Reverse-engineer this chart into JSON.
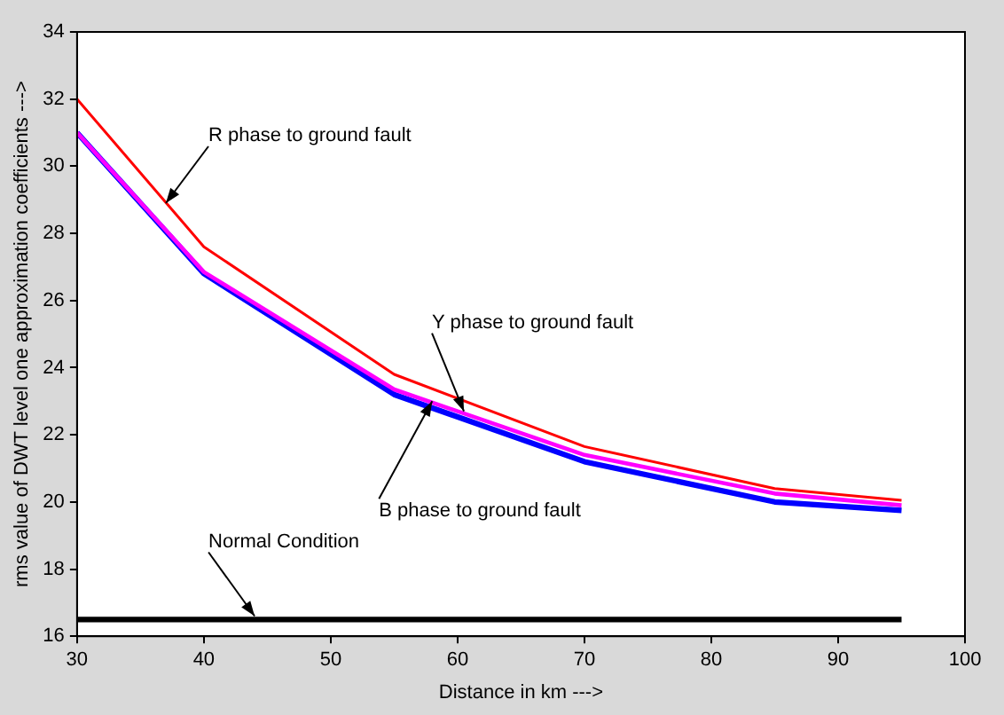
{
  "chart_data": {
    "type": "line",
    "xlabel": "Distance in km --->",
    "ylabel": "rms value of DWT level one approximation coefficients --->",
    "xlim": [
      30,
      100
    ],
    "xticks": [
      30,
      40,
      50,
      60,
      70,
      80,
      90,
      100
    ],
    "ylim": [
      16,
      34
    ],
    "yticks": [
      16,
      18,
      20,
      22,
      24,
      26,
      28,
      30,
      32,
      34
    ],
    "grid": false,
    "legend": false,
    "marker": "none",
    "line_style": "solid",
    "series": [
      {
        "color": "#ff0000",
        "x": [
          30,
          40,
          55,
          70,
          85,
          95
        ],
        "values": [
          32,
          27.6,
          23.8,
          21.65,
          20.4,
          20.05
        ]
      },
      {
        "color": "#ff00ff",
        "x": [
          30,
          40,
          55,
          70,
          85,
          95
        ],
        "values": [
          31,
          26.85,
          23.35,
          21.4,
          20.25,
          19.9
        ]
      },
      {
        "color": "#0000ff",
        "x": [
          30,
          40,
          55,
          70,
          85,
          95
        ],
        "values": [
          31,
          26.8,
          23.2,
          21.2,
          20.0,
          19.75
        ]
      },
      {
        "color": "#000000",
        "x": [
          30,
          95
        ],
        "values": [
          16.5,
          16.5
        ]
      }
    ],
    "annotations": [
      {
        "text": "R phase to ground fault",
        "x": 37,
        "y": 28.9
      },
      {
        "text": "Y phase to ground fault",
        "x": 60.5,
        "y": 22.7
      },
      {
        "text": "B phase to ground fault",
        "x": 58,
        "y": 23.0
      },
      {
        "text": "Normal Condition",
        "x": 44,
        "y": 16.6
      }
    ]
  }
}
